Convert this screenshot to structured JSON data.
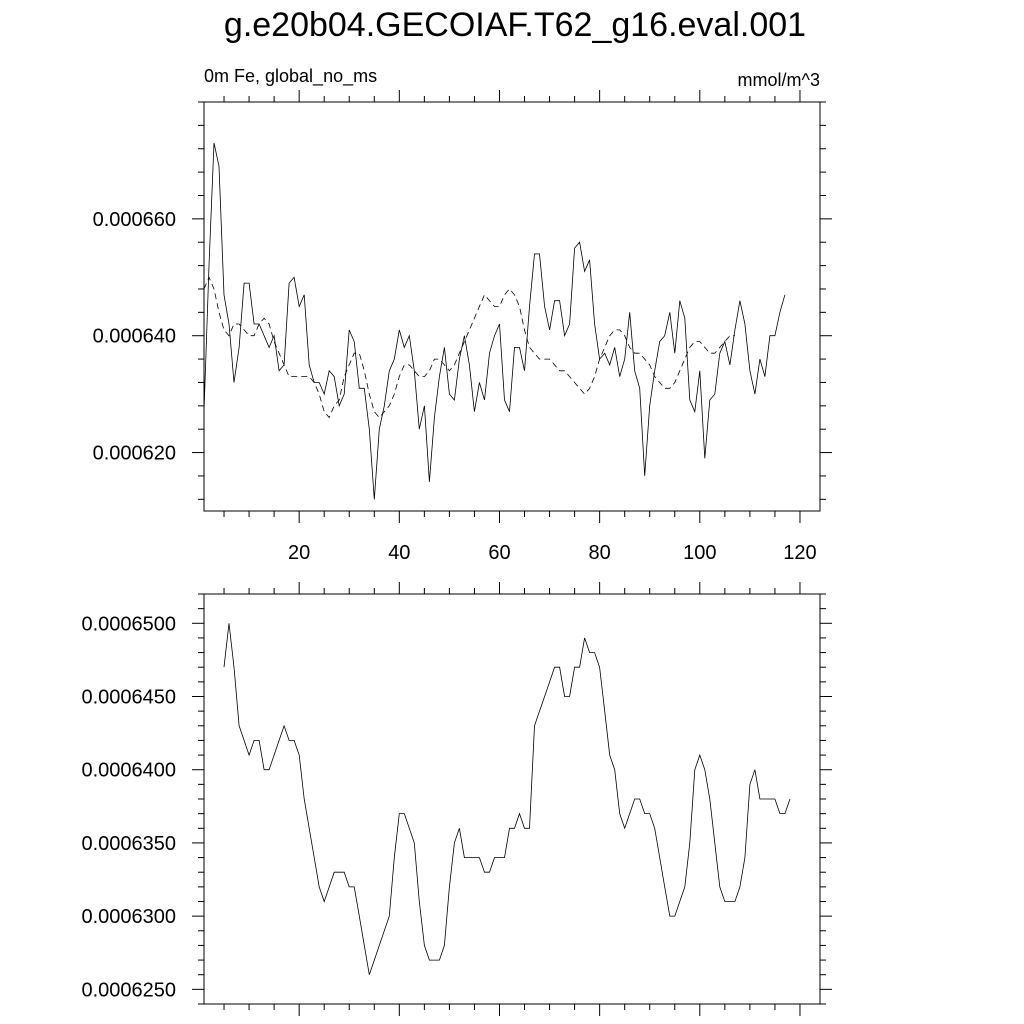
{
  "header": {
    "title": "g.e20b04.GECOIAF.T62_g16.eval.001",
    "left_string": "0m Fe, global_no_ms",
    "right_string": "mmol/m^3"
  },
  "chart_data": [
    {
      "type": "line",
      "title": "g.e20b04.GECOIAF.T62_g16.eval.001",
      "xlim": [
        1,
        124
      ],
      "ylim": [
        0.00061,
        0.00068
      ],
      "x_ticks": [
        20,
        40,
        60,
        80,
        100,
        120
      ],
      "x_tick_labels": [
        "20",
        "40",
        "60",
        "80",
        "100",
        "120"
      ],
      "y_ticks": [
        0.00062,
        0.00064,
        0.00066
      ],
      "y_tick_labels": [
        "0.000620",
        "0.000640",
        "0.000660"
      ],
      "grid": false,
      "series": [
        {
          "style": "solid",
          "x_start": 1,
          "values": [
            0.000627,
            0.000652,
            0.000673,
            0.000669,
            0.000647,
            0.000642,
            0.000632,
            0.000638,
            0.000649,
            0.000649,
            0.000642,
            0.000642,
            0.00064,
            0.000638,
            0.00064,
            0.000634,
            0.000635,
            0.000649,
            0.00065,
            0.000645,
            0.000647,
            0.000635,
            0.000632,
            0.000632,
            0.00063,
            0.000634,
            0.000633,
            0.000628,
            0.00063,
            0.000641,
            0.000639,
            0.000631,
            0.000631,
            0.000624,
            0.000612,
            0.000624,
            0.000628,
            0.000634,
            0.000636,
            0.000641,
            0.000638,
            0.00064,
            0.000634,
            0.000624,
            0.000628,
            0.000615,
            0.000626,
            0.000633,
            0.000638,
            0.00063,
            0.000629,
            0.000636,
            0.00064,
            0.000635,
            0.000627,
            0.000632,
            0.000629,
            0.000637,
            0.00064,
            0.000642,
            0.000629,
            0.000627,
            0.000638,
            0.000638,
            0.000634,
            0.000645,
            0.000654,
            0.000654,
            0.000645,
            0.000641,
            0.000646,
            0.000646,
            0.00064,
            0.000642,
            0.000655,
            0.000656,
            0.000651,
            0.000653,
            0.000642,
            0.000636,
            0.000637,
            0.000635,
            0.000638,
            0.000633,
            0.000636,
            0.000644,
            0.000634,
            0.000631,
            0.000616,
            0.000628,
            0.000634,
            0.000639,
            0.00064,
            0.000644,
            0.000637,
            0.000646,
            0.000643,
            0.000629,
            0.000627,
            0.000634,
            0.000619,
            0.000629,
            0.00063,
            0.000637,
            0.000639,
            0.000635,
            0.000641,
            0.000646,
            0.000642,
            0.000634,
            0.00063,
            0.000636,
            0.000633,
            0.00064,
            0.00064,
            0.000644,
            0.000647
          ]
        },
        {
          "style": "dashed",
          "x_start": 1,
          "values": [
            0.000648,
            0.00065,
            0.000648,
            0.000644,
            0.000641,
            0.00064,
            0.000642,
            0.000642,
            0.000641,
            0.00064,
            0.00064,
            0.000642,
            0.000643,
            0.000642,
            0.000639,
            0.000637,
            0.000635,
            0.000633,
            0.000633,
            0.000633,
            0.000633,
            0.000633,
            0.000632,
            0.00063,
            0.000627,
            0.000626,
            0.000628,
            0.000629,
            0.000633,
            0.000635,
            0.000637,
            0.000637,
            0.000634,
            0.00063,
            0.000627,
            0.000626,
            0.000627,
            0.000628,
            0.00063,
            0.000633,
            0.000635,
            0.000635,
            0.000634,
            0.000633,
            0.000633,
            0.000634,
            0.000636,
            0.000636,
            0.000635,
            0.000634,
            0.000635,
            0.000637,
            0.000639,
            0.000641,
            0.000643,
            0.000645,
            0.000647,
            0.000646,
            0.000645,
            0.000645,
            0.000647,
            0.000648,
            0.000647,
            0.000645,
            0.000641,
            0.000638,
            0.000637,
            0.000636,
            0.000636,
            0.000636,
            0.000635,
            0.000634,
            0.000634,
            0.000633,
            0.000632,
            0.000631,
            0.00063,
            0.000631,
            0.000633,
            0.000636,
            0.000638,
            0.00064,
            0.000641,
            0.000641,
            0.00064,
            0.000638,
            0.000637,
            0.000637,
            0.000636,
            0.000635,
            0.000633,
            0.000632,
            0.000631,
            0.000631,
            0.000632,
            0.000634,
            0.000636,
            0.000638,
            0.000639,
            0.000639,
            0.000638,
            0.000637,
            0.000637,
            0.000638,
            0.000639,
            0.00064,
            0.00064
          ]
        }
      ]
    },
    {
      "type": "line",
      "xlim": [
        1,
        124
      ],
      "ylim": [
        0.000624,
        0.000652
      ],
      "x_ticks": [
        20,
        40,
        60,
        80,
        100,
        120
      ],
      "y_ticks": [
        0.000625,
        0.00063,
        0.000635,
        0.00064,
        0.000645,
        0.00065
      ],
      "y_tick_labels": [
        "0.0006250",
        "0.0006300",
        "0.0006350",
        "0.0006400",
        "0.0006450",
        "0.0006500"
      ],
      "grid": false,
      "series": [
        {
          "style": "solid",
          "x_start": 5,
          "x_step": 1,
          "values": [
            0.000647,
            0.00065,
            0.000647,
            0.000643,
            0.000642,
            0.000641,
            0.000642,
            0.000642,
            0.00064,
            0.00064,
            0.000641,
            0.000642,
            0.000643,
            0.000642,
            0.000642,
            0.000641,
            0.000638,
            0.000636,
            0.000634,
            0.000632,
            0.000631,
            0.000632,
            0.000633,
            0.000633,
            0.000633,
            0.000632,
            0.000632,
            0.00063,
            0.000628,
            0.000626,
            0.000627,
            0.000628,
            0.000629,
            0.00063,
            0.000634,
            0.000637,
            0.000637,
            0.000636,
            0.000635,
            0.000631,
            0.000628,
            0.000627,
            0.000627,
            0.000627,
            0.000628,
            0.000632,
            0.000635,
            0.000636,
            0.000634,
            0.000634,
            0.000634,
            0.000634,
            0.000633,
            0.000633,
            0.000634,
            0.000634,
            0.000634,
            0.000636,
            0.000636,
            0.000637,
            0.000636,
            0.000636,
            0.000643,
            0.000644,
            0.000645,
            0.000646,
            0.000647,
            0.000647,
            0.000645,
            0.000645,
            0.000647,
            0.000647,
            0.000649,
            0.000648,
            0.000648,
            0.000647,
            0.000644,
            0.000641,
            0.00064,
            0.000637,
            0.000636,
            0.000637,
            0.000638,
            0.000638,
            0.000637,
            0.000637,
            0.000636,
            0.000634,
            0.000632,
            0.00063,
            0.00063,
            0.000631,
            0.000632,
            0.000635,
            0.00064,
            0.000641,
            0.00064,
            0.000638,
            0.000635,
            0.000632,
            0.000631,
            0.000631,
            0.000631,
            0.000632,
            0.000634,
            0.000639,
            0.00064,
            0.000638,
            0.000638,
            0.000638,
            0.000638,
            0.000637,
            0.000637,
            0.000638
          ]
        }
      ]
    }
  ]
}
